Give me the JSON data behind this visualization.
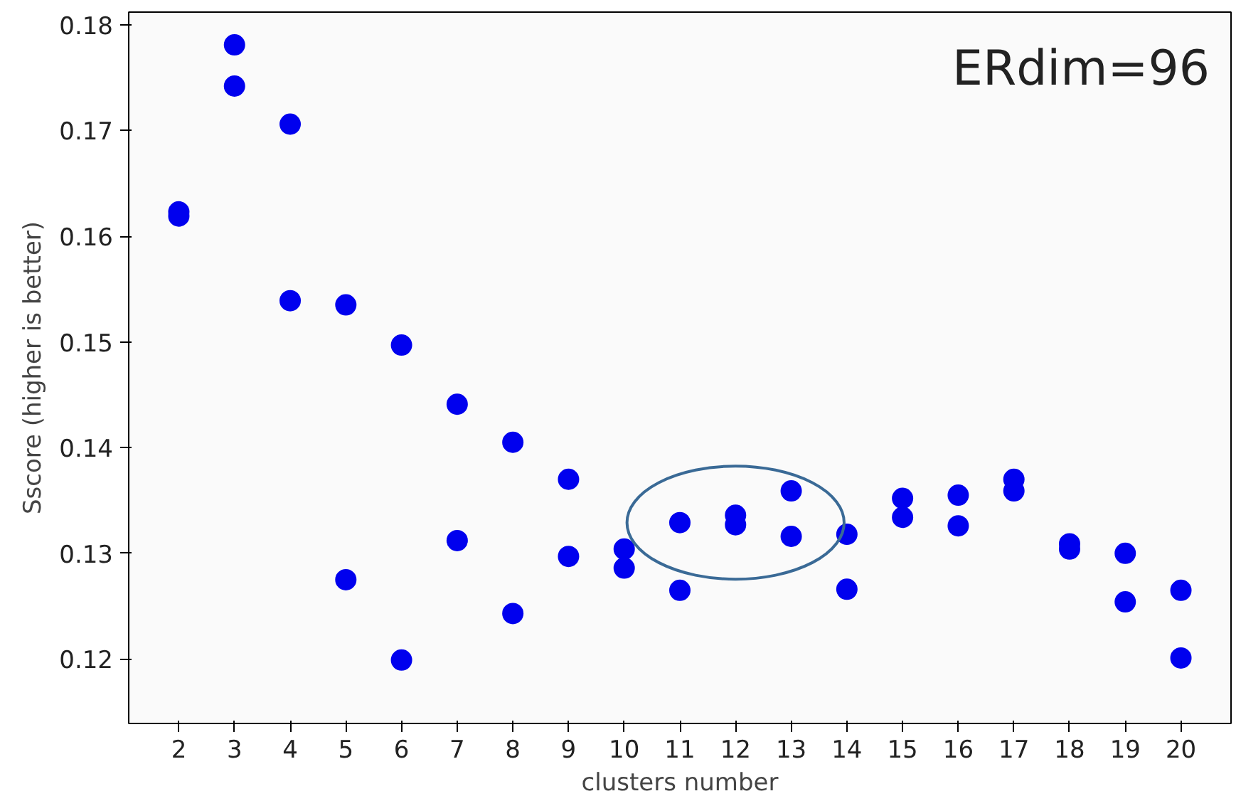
{
  "chart_data": {
    "type": "scatter",
    "xlabel": "clusters number",
    "ylabel": "Sscore (higher is better)",
    "annotations": [
      "ERdim=96"
    ],
    "x": [
      2,
      2,
      3,
      3,
      4,
      4,
      5,
      5,
      6,
      6,
      7,
      7,
      8,
      8,
      9,
      9,
      10,
      10,
      11,
      11,
      12,
      12,
      13,
      13,
      14,
      14,
      15,
      15,
      16,
      16,
      17,
      17,
      18,
      18,
      19,
      19,
      20,
      20
    ],
    "series": [
      {
        "color": "#0000ee",
        "values": [
          0.1623,
          0.1619,
          0.1781,
          0.1742,
          0.1706,
          0.1539,
          0.1535,
          0.1275,
          0.1497,
          0.1199,
          0.1441,
          0.1312,
          0.1405,
          0.1243,
          0.137,
          0.1297,
          0.1304,
          0.1286,
          0.1329,
          0.1265,
          0.1336,
          0.1327,
          0.1359,
          0.1316,
          0.1318,
          0.1266,
          0.1352,
          0.1334,
          0.1355,
          0.1326,
          0.137,
          0.1359,
          0.1309,
          0.1304,
          0.13,
          0.1254,
          0.1265,
          0.1201
        ]
      }
    ],
    "xlim": [
      1.1,
      20.9
    ],
    "ylim": [
      0.1139,
      0.1812
    ],
    "xticks": [
      2,
      3,
      4,
      5,
      6,
      7,
      8,
      9,
      10,
      11,
      12,
      13,
      14,
      15,
      16,
      17,
      18,
      19,
      20
    ],
    "yticks": [
      0.12,
      0.13,
      0.14,
      0.15,
      0.16,
      0.17,
      0.18
    ],
    "grid": false,
    "marker": "circle"
  }
}
